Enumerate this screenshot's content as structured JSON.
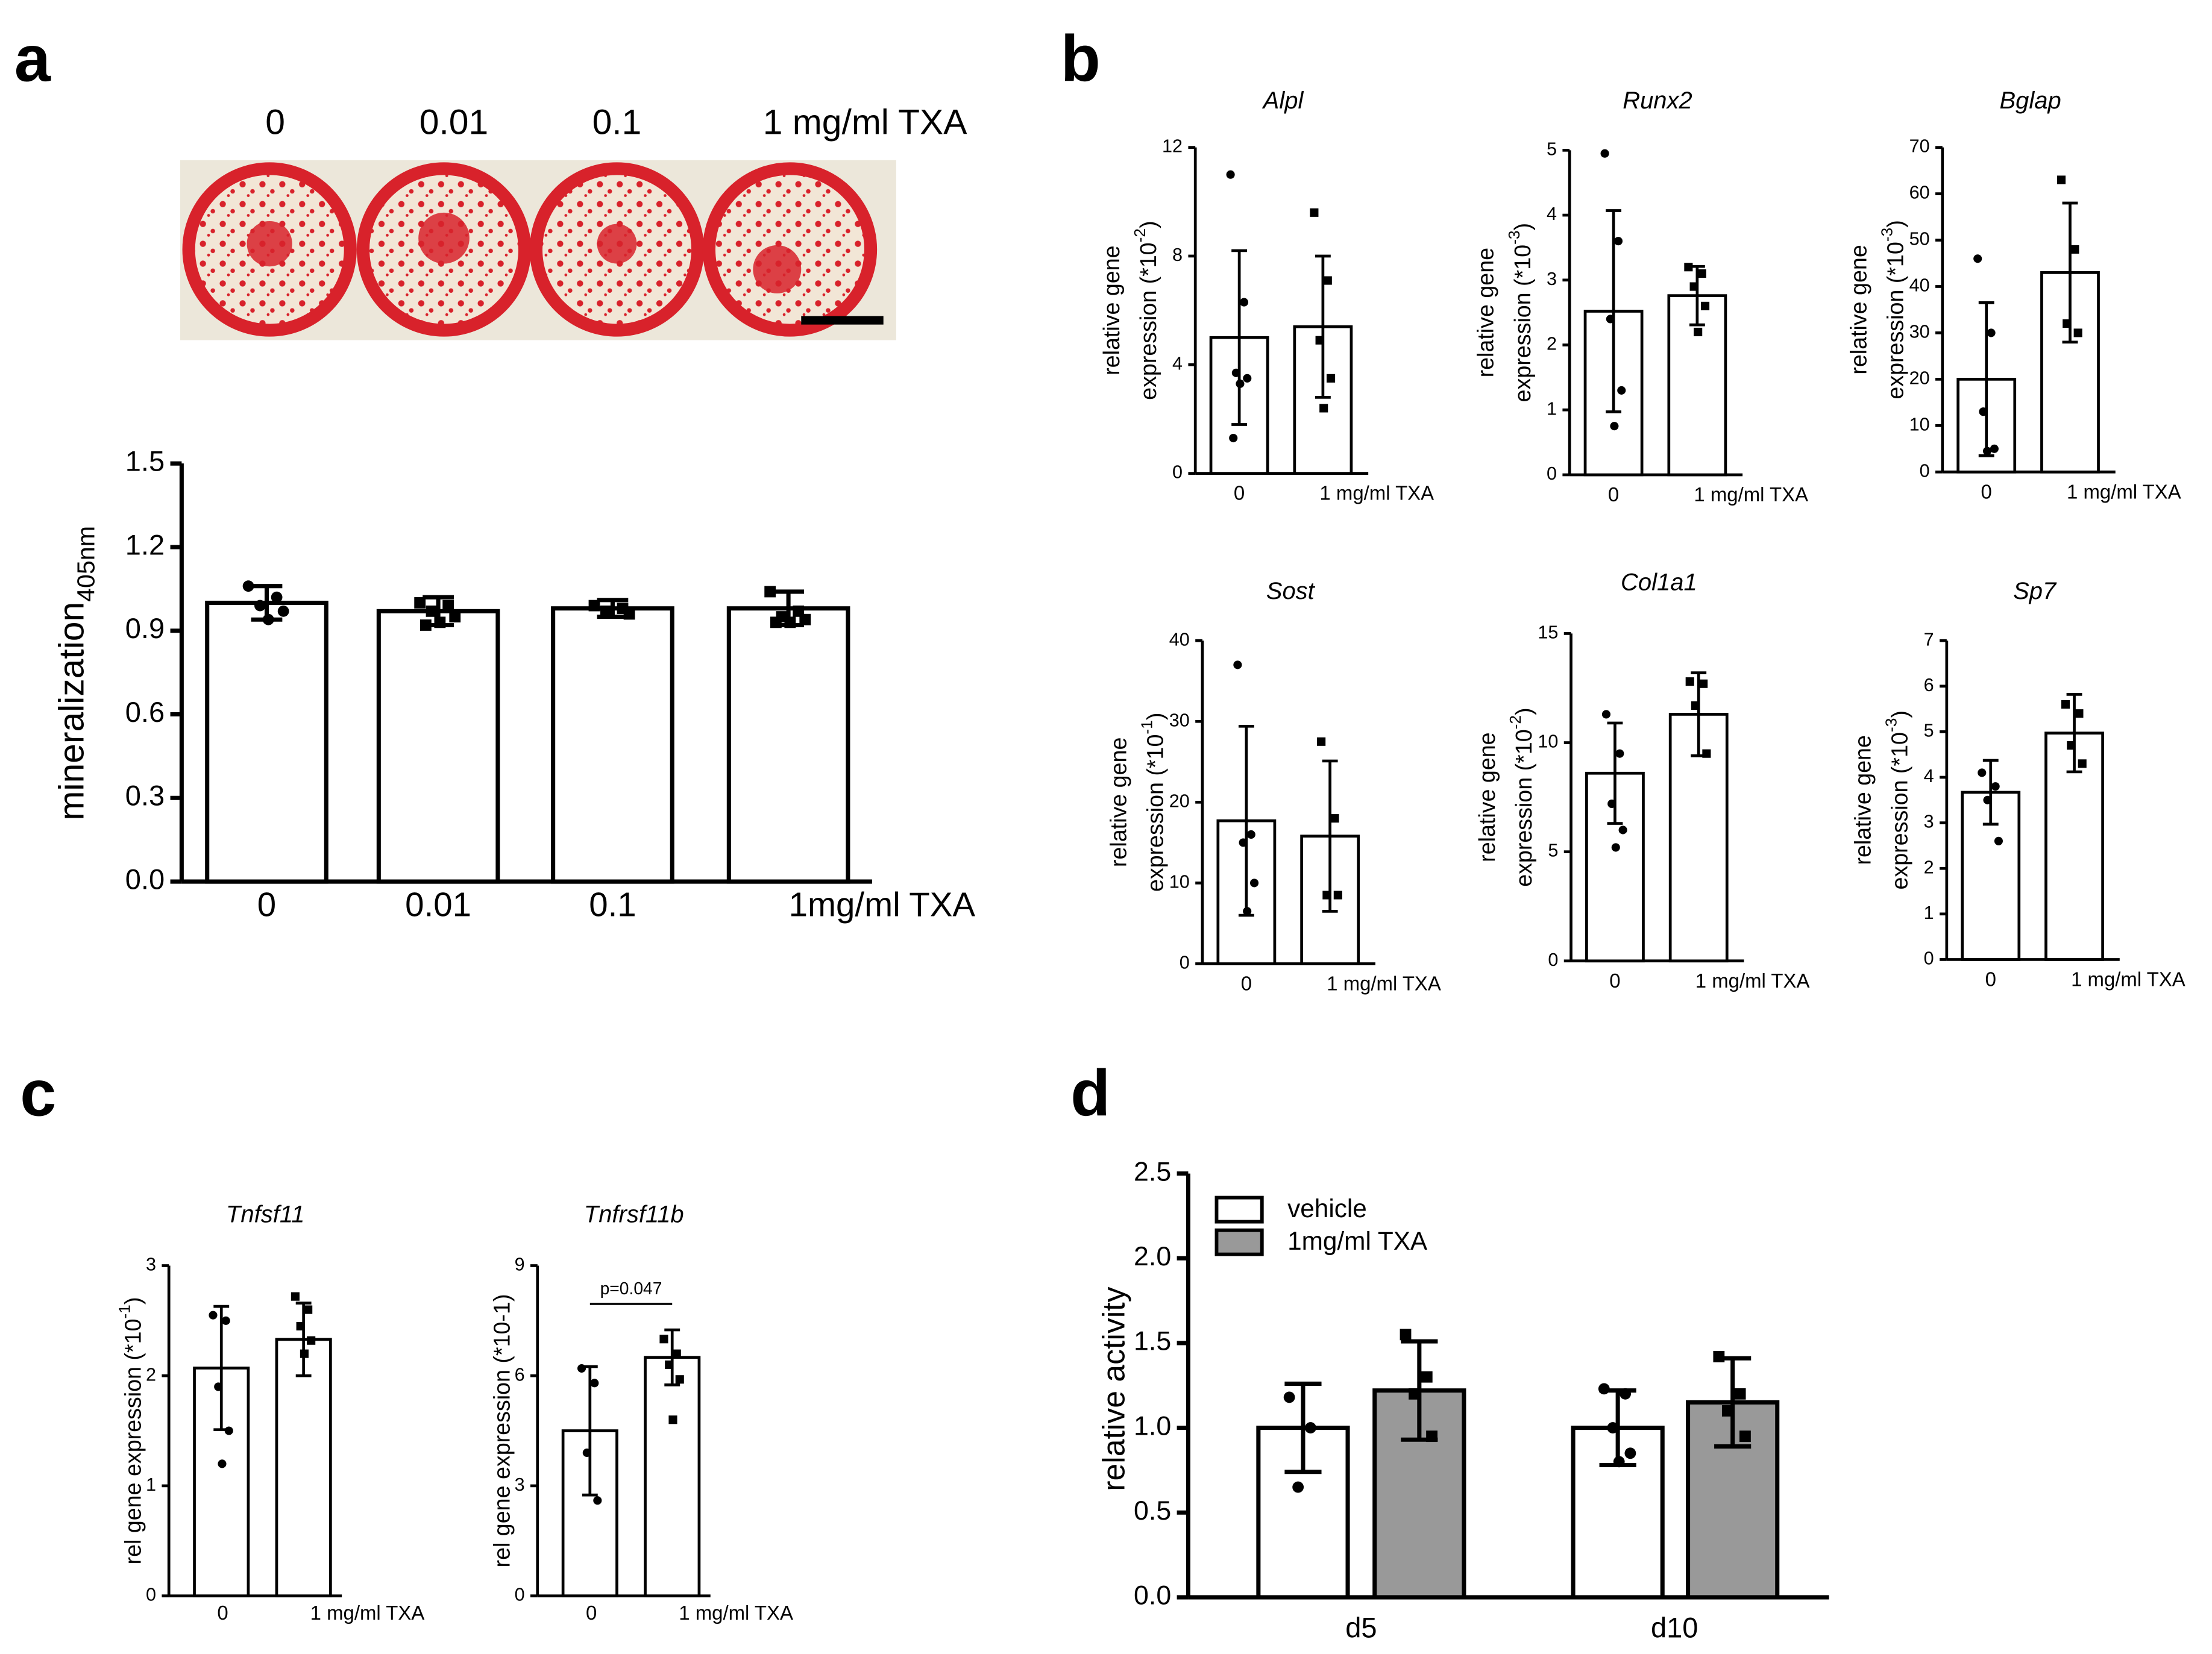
{
  "panel_labels": [
    "a",
    "b",
    "c",
    "d"
  ],
  "image_labels": [
    "0",
    "0.01",
    "0.1",
    "1 mg/ml TXA"
  ],
  "chart_data": [
    {
      "type": "bar",
      "categories": [
        "0",
        "0.01",
        "0.1",
        "1mg/ml TXA"
      ],
      "values": [
        1.0,
        0.97,
        0.98,
        0.98
      ],
      "errors": [
        0.06,
        0.05,
        0.03,
        0.06
      ],
      "points": [
        [
          1.06,
          1.02,
          0.99,
          0.97,
          0.94
        ],
        [
          1.0,
          0.99,
          0.97,
          0.95,
          0.93,
          0.92
        ],
        [
          0.99,
          0.98,
          0.97,
          0.96
        ],
        [
          1.04,
          0.97,
          0.95,
          0.94,
          0.93,
          0.93
        ]
      ],
      "color": "#ffffff",
      "ylim": [
        0,
        1.5
      ],
      "yticks": [
        {
          "value": 0,
          "label": "0.0"
        },
        0.3,
        0.6,
        0.9,
        1.2,
        1.5
      ],
      "ylabel": {
        "lines": [
          "mineralization"
        ],
        "sub": "405nm"
      }
    },
    {
      "type": "bar",
      "title": "Alpl",
      "categories": [
        "0",
        "1 mg/ml TXA"
      ],
      "values": [
        5.0,
        5.4
      ],
      "errors": [
        3.2,
        2.6
      ],
      "points": [
        [
          11,
          6.3,
          3.7,
          3.5,
          3.3,
          1.3
        ],
        [
          9.6,
          7.1,
          4.9,
          3.5,
          2.4
        ]
      ],
      "color": "#ffffff",
      "ylim": [
        0,
        12
      ],
      "yticks": [
        0,
        4,
        8,
        12
      ],
      "ylabel": {
        "lines": [
          "relative gene",
          "expression (*10"
        ],
        "sup": "-2",
        "end": ")"
      }
    },
    {
      "type": "bar",
      "title": "Runx2",
      "categories": [
        "0",
        "1 mg/ml TXA"
      ],
      "values": [
        2.52,
        2.76
      ],
      "errors": [
        1.55,
        0.45
      ],
      "points": [
        [
          4.95,
          3.6,
          2.4,
          1.3,
          0.75
        ],
        [
          3.2,
          3.1,
          2.9,
          2.6,
          2.2
        ]
      ],
      "color": "#ffffff",
      "ylim": [
        0,
        5
      ],
      "yticks": [
        0,
        1,
        2,
        3,
        4,
        5
      ],
      "ylabel": {
        "lines": [
          "relative gene",
          "expression (*10"
        ],
        "sup": "-3",
        "end": ")"
      }
    },
    {
      "type": "bar",
      "title": "Bglap",
      "categories": [
        "0",
        "1 mg/ml TXA"
      ],
      "values": [
        20,
        43
      ],
      "errors": [
        16.5,
        15
      ],
      "points": [
        [
          46,
          30,
          13,
          5,
          4.5
        ],
        [
          63,
          48,
          32,
          30
        ]
      ],
      "color": "#ffffff",
      "ylim": [
        0,
        70
      ],
      "yticks": [
        0,
        10,
        20,
        30,
        40,
        50,
        60,
        70
      ],
      "ylabel": {
        "lines": [
          "relative gene",
          "expression (*10"
        ],
        "sup": "-3",
        "end": ")"
      }
    },
    {
      "type": "bar",
      "title": "Sost",
      "categories": [
        "0",
        "1 mg/ml TXA"
      ],
      "values": [
        17.7,
        15.8
      ],
      "errors": [
        11.7,
        9.3
      ],
      "points": [
        [
          37,
          16,
          15,
          10,
          6.5
        ],
        [
          27.5,
          18,
          8.5,
          8.5
        ]
      ],
      "color": "#ffffff",
      "ylim": [
        0,
        40
      ],
      "yticks": [
        0,
        10,
        20,
        30,
        40
      ],
      "ylabel": {
        "lines": [
          "relative gene",
          "expression (*10"
        ],
        "sup": "-1",
        "end": ")"
      }
    },
    {
      "type": "bar",
      "title": "Col1a1",
      "categories": [
        "0",
        "1 mg/ml TXA"
      ],
      "values": [
        8.6,
        11.3
      ],
      "errors": [
        2.3,
        1.9
      ],
      "points": [
        [
          11.3,
          9.5,
          7.2,
          6,
          5.2
        ],
        [
          12.8,
          12.7,
          11.7,
          9.5
        ]
      ],
      "color": "#ffffff",
      "ylim": [
        0,
        15
      ],
      "yticks": [
        0,
        5,
        10,
        15
      ],
      "ylabel": {
        "lines": [
          "relative gene",
          "expression (*10"
        ],
        "sup": "-2",
        "end": ")"
      }
    },
    {
      "type": "bar",
      "title": "Sp7",
      "categories": [
        "0",
        "1 mg/ml TXA"
      ],
      "values": [
        3.67,
        4.97
      ],
      "errors": [
        0.7,
        0.85
      ],
      "points": [
        [
          4.1,
          3.8,
          3.5,
          2.6
        ],
        [
          5.6,
          5.4,
          4.7,
          4.3
        ]
      ],
      "color": "#ffffff",
      "ylim": [
        0,
        7
      ],
      "yticks": [
        0,
        1,
        2,
        3,
        4,
        5,
        6,
        7
      ],
      "ylabel": {
        "lines": [
          "relative gene",
          "expression (*10"
        ],
        "sup": "-3",
        "end": ")"
      }
    },
    {
      "type": "bar",
      "title": "Tnfsf11",
      "categories": [
        "0",
        "1 mg/ml TXA"
      ],
      "values": [
        2.07,
        2.33
      ],
      "errors": [
        0.56,
        0.33
      ],
      "points": [
        [
          2.55,
          2.5,
          1.9,
          1.5,
          1.2
        ],
        [
          2.72,
          2.6,
          2.45,
          2.32,
          2.2
        ]
      ],
      "color": "#ffffff",
      "ylim": [
        0,
        3
      ],
      "yticks": [
        0,
        1,
        2,
        3
      ],
      "ylabel": {
        "lines": [
          "rel gene expression (*10"
        ],
        "sup": "-1",
        "end": ")"
      }
    },
    {
      "type": "bar",
      "title": "Tnfrsf11b",
      "categories": [
        "0",
        "1 mg/ml TXA"
      ],
      "values": [
        4.5,
        6.5
      ],
      "errors": [
        1.75,
        0.75
      ],
      "points": [
        [
          6.2,
          5.8,
          3.9,
          2.6
        ],
        [
          7,
          6.6,
          6.3,
          5.9,
          4.8
        ]
      ],
      "color": "#ffffff",
      "ylim": [
        0,
        9
      ],
      "yticks": [
        0,
        3,
        6,
        9
      ],
      "annotation": "p=0.047",
      "ylabel": {
        "lines": [
          "rel gene expression (*10-1)"
        ]
      }
    },
    {
      "type": "bar",
      "categories": [
        "d5",
        "d10"
      ],
      "series": [
        {
          "name": "vehicle",
          "color": "#ffffff",
          "values": [
            1.0,
            1.0
          ],
          "errors": [
            0.26,
            0.22
          ],
          "points": [
            [
              1.18,
              1.0,
              0.65
            ],
            [
              1.23,
              1.2,
              1.0,
              0.85,
              0.8
            ]
          ]
        },
        {
          "name": "1mg/ml TXA",
          "color": "#999999",
          "values": [
            1.22,
            1.15
          ],
          "errors": [
            0.29,
            0.26
          ],
          "points": [
            [
              1.55,
              1.3,
              1.2,
              0.95
            ],
            [
              1.42,
              1.2,
              1.1,
              0.95
            ]
          ]
        }
      ],
      "ylim": [
        0,
        2.5
      ],
      "yticks": [
        {
          "value": 0,
          "label": "0.0"
        },
        0.5,
        {
          "value": 1,
          "label": "1.0"
        },
        1.5,
        {
          "value": 2,
          "label": "2.0"
        },
        2.5
      ],
      "legend": "upper left",
      "ylabel": {
        "lines": [
          "relative activity"
        ]
      }
    }
  ]
}
